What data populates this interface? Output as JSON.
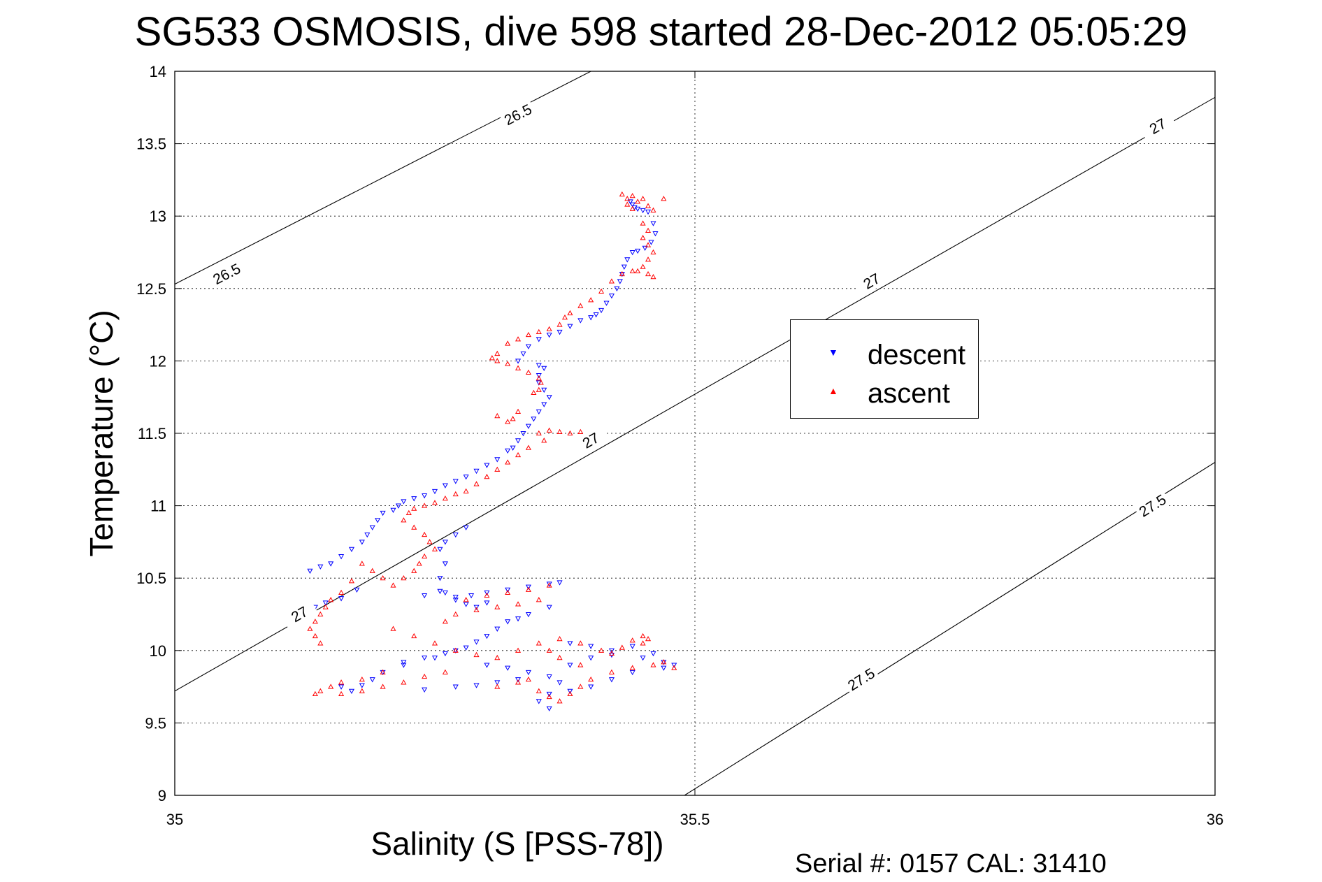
{
  "chart_data": {
    "type": "scatter",
    "title": "SG533 OSMOSIS, dive 598 started 28-Dec-2012 05:05:29",
    "xlabel": "Salinity (S [PSS-78])",
    "ylabel": "Temperature (°C)",
    "xlim": [
      35,
      36
    ],
    "ylim": [
      9,
      14
    ],
    "xticks": [
      "35",
      "35.5",
      "36"
    ],
    "yticks": [
      "9",
      "9.5",
      "10",
      "10.5",
      "11",
      "11.5",
      "12",
      "12.5",
      "13",
      "13.5",
      "14"
    ],
    "grid": true,
    "legend_position": "right-center",
    "contours": [
      {
        "label": "26.5",
        "points": [
          [
            35.0,
            12.53
          ],
          [
            35.4,
            14.0
          ]
        ]
      },
      {
        "label": "27",
        "points": [
          [
            35.0,
            9.72
          ],
          [
            36.0,
            13.82
          ]
        ]
      },
      {
        "label": "27.5",
        "points": [
          [
            35.49,
            9.0
          ],
          [
            36.0,
            11.3
          ]
        ]
      }
    ],
    "contour_labels": [
      {
        "text": "26.5",
        "x": 35.33,
        "y": 13.7
      },
      {
        "text": "26.5",
        "x": 35.05,
        "y": 12.6
      },
      {
        "text": "27",
        "x": 35.945,
        "y": 13.62
      },
      {
        "text": "27",
        "x": 35.67,
        "y": 12.55
      },
      {
        "text": "27",
        "x": 35.4,
        "y": 11.45
      },
      {
        "text": "27",
        "x": 35.12,
        "y": 10.25
      },
      {
        "text": "27.5",
        "x": 35.94,
        "y": 11.0
      },
      {
        "text": "27.5",
        "x": 35.66,
        "y": 9.8
      }
    ],
    "series": [
      {
        "name": "descent",
        "color": "#0000ff",
        "marker": "down-triangle",
        "points": [
          [
            35.445,
            13.05
          ],
          [
            35.44,
            13.08
          ],
          [
            35.438,
            13.1
          ],
          [
            35.442,
            13.06
          ],
          [
            35.45,
            13.04
          ],
          [
            35.455,
            13.03
          ],
          [
            35.46,
            12.95
          ],
          [
            35.462,
            12.88
          ],
          [
            35.458,
            12.82
          ],
          [
            35.452,
            12.78
          ],
          [
            35.445,
            12.76
          ],
          [
            35.44,
            12.75
          ],
          [
            35.435,
            12.7
          ],
          [
            35.432,
            12.65
          ],
          [
            35.43,
            12.6
          ],
          [
            35.428,
            12.55
          ],
          [
            35.425,
            12.5
          ],
          [
            35.42,
            12.45
          ],
          [
            35.415,
            12.4
          ],
          [
            35.41,
            12.35
          ],
          [
            35.405,
            12.32
          ],
          [
            35.4,
            12.3
          ],
          [
            35.39,
            12.28
          ],
          [
            35.38,
            12.24
          ],
          [
            35.37,
            12.2
          ],
          [
            35.36,
            12.18
          ],
          [
            35.35,
            12.15
          ],
          [
            35.34,
            12.1
          ],
          [
            35.335,
            12.05
          ],
          [
            35.33,
            12.0
          ],
          [
            35.35,
            11.97
          ],
          [
            35.355,
            11.95
          ],
          [
            35.35,
            11.9
          ],
          [
            35.35,
            11.85
          ],
          [
            35.355,
            11.8
          ],
          [
            35.36,
            11.75
          ],
          [
            35.355,
            11.7
          ],
          [
            35.35,
            11.65
          ],
          [
            35.345,
            11.6
          ],
          [
            35.34,
            11.55
          ],
          [
            35.335,
            11.5
          ],
          [
            35.33,
            11.45
          ],
          [
            35.325,
            11.4
          ],
          [
            35.32,
            11.38
          ],
          [
            35.31,
            11.32
          ],
          [
            35.3,
            11.28
          ],
          [
            35.29,
            11.24
          ],
          [
            35.28,
            11.2
          ],
          [
            35.27,
            11.17
          ],
          [
            35.26,
            11.14
          ],
          [
            35.25,
            11.1
          ],
          [
            35.24,
            11.07
          ],
          [
            35.23,
            11.05
          ],
          [
            35.22,
            11.03
          ],
          [
            35.215,
            11.0
          ],
          [
            35.21,
            10.97
          ],
          [
            35.2,
            10.95
          ],
          [
            35.195,
            10.9
          ],
          [
            35.19,
            10.85
          ],
          [
            35.185,
            10.8
          ],
          [
            35.18,
            10.75
          ],
          [
            35.17,
            10.7
          ],
          [
            35.16,
            10.65
          ],
          [
            35.15,
            10.6
          ],
          [
            35.14,
            10.58
          ],
          [
            35.13,
            10.55
          ],
          [
            35.26,
            10.75
          ],
          [
            35.27,
            10.8
          ],
          [
            35.28,
            10.85
          ],
          [
            35.255,
            10.7
          ],
          [
            35.26,
            10.6
          ],
          [
            35.255,
            10.5
          ],
          [
            35.26,
            10.4
          ],
          [
            35.27,
            10.35
          ],
          [
            35.28,
            10.32
          ],
          [
            35.29,
            10.3
          ],
          [
            35.3,
            10.33
          ],
          [
            35.285,
            10.38
          ],
          [
            35.27,
            10.37
          ],
          [
            35.255,
            10.41
          ],
          [
            35.24,
            10.38
          ],
          [
            35.125,
            10.27
          ],
          [
            35.135,
            10.3
          ],
          [
            35.145,
            10.33
          ],
          [
            35.16,
            10.36
          ],
          [
            35.175,
            10.42
          ],
          [
            35.3,
            10.4
          ],
          [
            35.32,
            10.42
          ],
          [
            35.34,
            10.44
          ],
          [
            35.36,
            10.46
          ],
          [
            35.37,
            10.47
          ],
          [
            35.36,
            10.3
          ],
          [
            35.34,
            10.25
          ],
          [
            35.33,
            10.22
          ],
          [
            35.32,
            10.2
          ],
          [
            35.31,
            10.15
          ],
          [
            35.3,
            10.1
          ],
          [
            35.29,
            10.06
          ],
          [
            35.28,
            10.02
          ],
          [
            35.26,
            9.98
          ],
          [
            35.24,
            9.95
          ],
          [
            35.22,
            9.9
          ],
          [
            35.2,
            9.85
          ],
          [
            35.19,
            9.8
          ],
          [
            35.18,
            9.76
          ],
          [
            35.17,
            9.72
          ],
          [
            35.16,
            9.75
          ],
          [
            35.22,
            9.92
          ],
          [
            35.25,
            9.95
          ],
          [
            35.27,
            10.0
          ],
          [
            35.3,
            9.9
          ],
          [
            35.32,
            9.88
          ],
          [
            35.34,
            9.85
          ],
          [
            35.36,
            9.82
          ],
          [
            35.38,
            9.9
          ],
          [
            35.4,
            9.95
          ],
          [
            35.42,
            9.97
          ],
          [
            35.45,
            9.95
          ],
          [
            35.47,
            9.92
          ],
          [
            35.48,
            9.9
          ],
          [
            35.47,
            9.88
          ],
          [
            35.44,
            9.85
          ],
          [
            35.42,
            9.8
          ],
          [
            35.4,
            9.75
          ],
          [
            35.38,
            9.72
          ],
          [
            35.36,
            9.7
          ],
          [
            35.35,
            9.65
          ],
          [
            35.36,
            9.6
          ],
          [
            35.38,
            10.05
          ],
          [
            35.4,
            10.03
          ],
          [
            35.42,
            10.0
          ],
          [
            35.44,
            10.03
          ],
          [
            35.46,
            9.98
          ],
          [
            35.37,
            9.78
          ],
          [
            35.33,
            9.8
          ],
          [
            35.31,
            9.78
          ],
          [
            35.29,
            9.76
          ],
          [
            35.27,
            9.75
          ],
          [
            35.24,
            9.73
          ]
        ]
      },
      {
        "name": "ascent",
        "color": "#ff0000",
        "marker": "up-triangle",
        "points": [
          [
            35.43,
            13.15
          ],
          [
            35.435,
            13.12
          ],
          [
            35.44,
            13.14
          ],
          [
            35.445,
            13.1
          ],
          [
            35.45,
            13.12
          ],
          [
            35.435,
            13.08
          ],
          [
            35.44,
            13.05
          ],
          [
            35.455,
            13.07
          ],
          [
            35.46,
            13.04
          ],
          [
            35.47,
            13.12
          ],
          [
            35.45,
            12.95
          ],
          [
            35.455,
            12.9
          ],
          [
            35.45,
            12.85
          ],
          [
            35.455,
            12.8
          ],
          [
            35.46,
            12.75
          ],
          [
            35.455,
            12.7
          ],
          [
            35.45,
            12.65
          ],
          [
            35.445,
            12.62
          ],
          [
            35.455,
            12.6
          ],
          [
            35.46,
            12.58
          ],
          [
            35.44,
            12.62
          ],
          [
            35.43,
            12.6
          ],
          [
            35.42,
            12.55
          ],
          [
            35.41,
            12.48
          ],
          [
            35.4,
            12.42
          ],
          [
            35.39,
            12.38
          ],
          [
            35.38,
            12.33
          ],
          [
            35.375,
            12.3
          ],
          [
            35.37,
            12.25
          ],
          [
            35.36,
            12.22
          ],
          [
            35.35,
            12.2
          ],
          [
            35.34,
            12.18
          ],
          [
            35.33,
            12.15
          ],
          [
            35.32,
            12.12
          ],
          [
            35.31,
            12.05
          ],
          [
            35.305,
            12.02
          ],
          [
            35.31,
            12.0
          ],
          [
            35.32,
            11.98
          ],
          [
            35.33,
            11.95
          ],
          [
            35.34,
            11.92
          ],
          [
            35.35,
            11.88
          ],
          [
            35.352,
            11.85
          ],
          [
            35.35,
            11.8
          ],
          [
            35.345,
            11.78
          ],
          [
            35.33,
            11.65
          ],
          [
            35.325,
            11.6
          ],
          [
            35.32,
            11.58
          ],
          [
            35.31,
            11.62
          ],
          [
            35.35,
            11.5
          ],
          [
            35.36,
            11.52
          ],
          [
            35.37,
            11.51
          ],
          [
            35.38,
            11.5
          ],
          [
            35.39,
            11.51
          ],
          [
            35.355,
            11.45
          ],
          [
            35.34,
            11.4
          ],
          [
            35.33,
            11.35
          ],
          [
            35.32,
            11.3
          ],
          [
            35.31,
            11.25
          ],
          [
            35.3,
            11.2
          ],
          [
            35.29,
            11.15
          ],
          [
            35.28,
            11.1
          ],
          [
            35.27,
            11.08
          ],
          [
            35.26,
            11.05
          ],
          [
            35.25,
            11.02
          ],
          [
            35.24,
            11.0
          ],
          [
            35.23,
            10.98
          ],
          [
            35.225,
            10.95
          ],
          [
            35.22,
            10.9
          ],
          [
            35.23,
            10.85
          ],
          [
            35.24,
            10.8
          ],
          [
            35.245,
            10.75
          ],
          [
            35.25,
            10.7
          ],
          [
            35.24,
            10.65
          ],
          [
            35.235,
            10.6
          ],
          [
            35.23,
            10.55
          ],
          [
            35.22,
            10.5
          ],
          [
            35.21,
            10.45
          ],
          [
            35.2,
            10.5
          ],
          [
            35.19,
            10.55
          ],
          [
            35.18,
            10.6
          ],
          [
            35.17,
            10.48
          ],
          [
            35.16,
            10.4
          ],
          [
            35.15,
            10.35
          ],
          [
            35.145,
            10.3
          ],
          [
            35.14,
            10.25
          ],
          [
            35.135,
            10.2
          ],
          [
            35.13,
            10.15
          ],
          [
            35.135,
            10.1
          ],
          [
            35.14,
            10.05
          ],
          [
            35.28,
            10.35
          ],
          [
            35.3,
            10.38
          ],
          [
            35.32,
            10.4
          ],
          [
            35.34,
            10.42
          ],
          [
            35.36,
            10.45
          ],
          [
            35.35,
            10.35
          ],
          [
            35.33,
            10.32
          ],
          [
            35.31,
            10.3
          ],
          [
            35.29,
            10.28
          ],
          [
            35.27,
            10.25
          ],
          [
            35.26,
            10.2
          ],
          [
            35.21,
            10.15
          ],
          [
            35.23,
            10.1
          ],
          [
            35.25,
            10.05
          ],
          [
            35.27,
            10.0
          ],
          [
            35.29,
            9.97
          ],
          [
            35.31,
            9.95
          ],
          [
            35.33,
            10.0
          ],
          [
            35.35,
            10.05
          ],
          [
            35.37,
            10.08
          ],
          [
            35.39,
            10.05
          ],
          [
            35.41,
            10.0
          ],
          [
            35.43,
            10.02
          ],
          [
            35.45,
            10.05
          ],
          [
            35.455,
            10.08
          ],
          [
            35.45,
            10.1
          ],
          [
            35.44,
            10.07
          ],
          [
            35.42,
            9.98
          ],
          [
            35.2,
            9.85
          ],
          [
            35.18,
            9.8
          ],
          [
            35.16,
            9.78
          ],
          [
            35.15,
            9.75
          ],
          [
            35.14,
            9.72
          ],
          [
            35.135,
            9.7
          ],
          [
            35.16,
            9.7
          ],
          [
            35.18,
            9.72
          ],
          [
            35.2,
            9.75
          ],
          [
            35.22,
            9.78
          ],
          [
            35.24,
            9.82
          ],
          [
            35.26,
            9.85
          ],
          [
            35.34,
            9.8
          ],
          [
            35.35,
            9.72
          ],
          [
            35.36,
            9.68
          ],
          [
            35.37,
            9.65
          ],
          [
            35.38,
            9.7
          ],
          [
            35.39,
            9.75
          ],
          [
            35.4,
            9.8
          ],
          [
            35.42,
            9.85
          ],
          [
            35.44,
            9.88
          ],
          [
            35.46,
            9.9
          ],
          [
            35.47,
            9.92
          ],
          [
            35.48,
            9.88
          ],
          [
            35.39,
            9.9
          ],
          [
            35.37,
            9.95
          ],
          [
            35.36,
            10.0
          ],
          [
            35.33,
            9.78
          ],
          [
            35.31,
            9.75
          ]
        ]
      }
    ]
  },
  "footer": {
    "serial": "Serial #: 0157  CAL: 31410"
  }
}
